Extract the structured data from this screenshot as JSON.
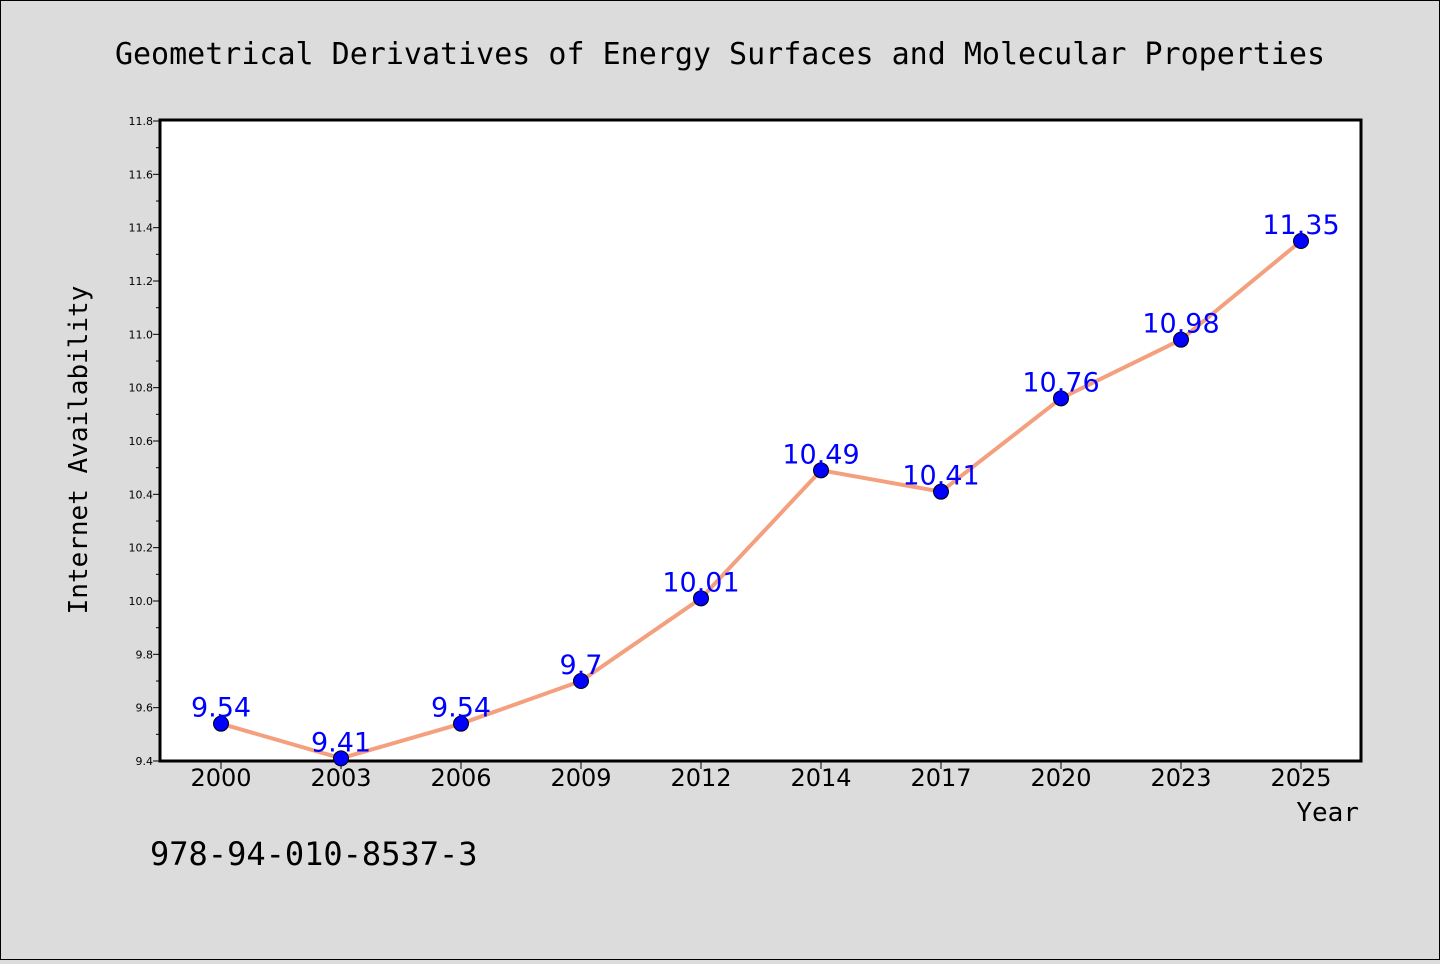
{
  "chart_data": {
    "type": "line",
    "title": "Geometrical Derivatives of Energy Surfaces and Molecular Properties",
    "xlabel": "Year",
    "ylabel": "Internet Availability",
    "categories": [
      "2000",
      "2003",
      "2006",
      "2009",
      "2012",
      "2014",
      "2017",
      "2020",
      "2023",
      "2025"
    ],
    "series": [
      {
        "name": "",
        "values": [
          9.54,
          9.41,
          9.54,
          9.7,
          10.01,
          10.49,
          10.41,
          10.76,
          10.98,
          11.35
        ]
      }
    ],
    "data_labels": [
      "9.54",
      "9.41",
      "9.54",
      "9.7",
      "10.01",
      "10.49",
      "10.41",
      "10.76",
      "10.98",
      "11.35"
    ],
    "ylim": [
      9.4,
      11.8
    ],
    "yticks": [
      "9.4",
      "9.6",
      "9.8",
      "10.0",
      "10.2",
      "10.4",
      "10.6",
      "10.8",
      "11.0",
      "11.2",
      "11.4",
      "11.6",
      "11.8"
    ],
    "grid": false,
    "legend": "none",
    "colors": {
      "line": "#f4a07e",
      "marker": "#0000ff",
      "label": "#0000ff",
      "background": "#dcdcdc",
      "plot_background": "#ffffff"
    }
  },
  "footnote": "978-94-010-8537-3"
}
